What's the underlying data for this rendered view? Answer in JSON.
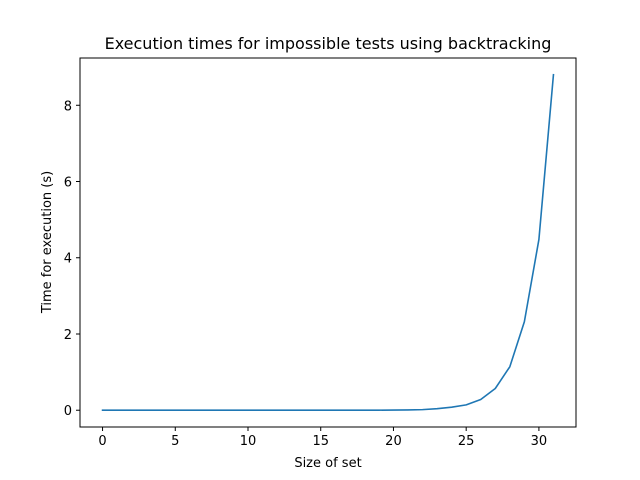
{
  "chart_data": {
    "type": "line",
    "title": "Execution times for impossible tests using backtracking",
    "xlabel": "Size of set",
    "ylabel": "Time for execution (s)",
    "xlim": [
      -1.55,
      32.55
    ],
    "ylim": [
      -0.44,
      9.24
    ],
    "xticks": [
      0,
      5,
      10,
      15,
      20,
      25,
      30
    ],
    "yticks": [
      0,
      2,
      4,
      6,
      8
    ],
    "grid": false,
    "legend": "none",
    "series": [
      {
        "color": "#1f77b4",
        "x": [
          0,
          1,
          2,
          3,
          4,
          5,
          6,
          7,
          8,
          9,
          10,
          11,
          12,
          13,
          14,
          15,
          16,
          17,
          18,
          19,
          20,
          21,
          22,
          23,
          24,
          25,
          26,
          27,
          28,
          29,
          30,
          31
        ],
        "y": [
          0,
          0,
          0,
          0,
          0,
          0,
          0,
          0,
          0,
          0,
          0,
          0,
          0,
          0,
          0,
          0,
          0,
          0,
          0.001,
          0.002,
          0.004,
          0.008,
          0.016,
          0.04,
          0.08,
          0.14,
          0.28,
          0.57,
          1.14,
          2.32,
          4.48,
          8.8
        ]
      }
    ]
  }
}
